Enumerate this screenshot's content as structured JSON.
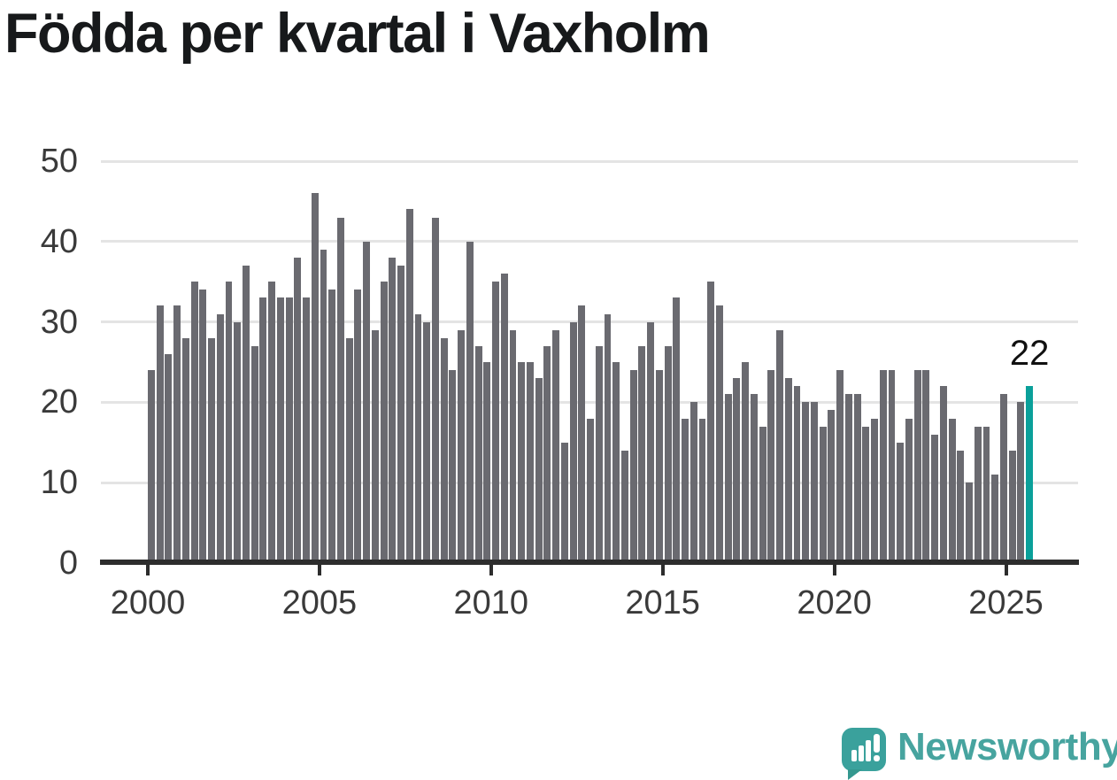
{
  "title": "Födda per kvartal i Vaxholm",
  "branding": {
    "name": "Newsworthy",
    "icon": "newsworthy-speech-bubble-chart-icon"
  },
  "colors": {
    "bar": "#6a6a70",
    "highlight": "#0aa09a",
    "grid": "#e4e4e4",
    "axis": "#2d2d2d",
    "title": "#17191b",
    "tick_label": "#3a3a3a",
    "annotation": "#111111",
    "logo": "#3aa19c",
    "logo_text": "#47a49f",
    "background": "#ffffff"
  },
  "chart_data": {
    "type": "bar",
    "title": "Födda per kvartal i Vaxholm",
    "frequency": "quarterly",
    "x_start": "2000-Q1",
    "x_end": "2025-Q3",
    "values": [
      24,
      32,
      26,
      32,
      28,
      35,
      34,
      28,
      31,
      35,
      30,
      37,
      27,
      33,
      35,
      33,
      33,
      38,
      33,
      46,
      39,
      34,
      43,
      28,
      34,
      40,
      29,
      35,
      38,
      37,
      44,
      31,
      30,
      43,
      28,
      24,
      29,
      40,
      27,
      25,
      35,
      36,
      29,
      25,
      25,
      23,
      27,
      29,
      15,
      30,
      32,
      18,
      27,
      31,
      25,
      14,
      24,
      27,
      30,
      24,
      27,
      33,
      18,
      20,
      18,
      35,
      32,
      21,
      23,
      25,
      21,
      17,
      24,
      29,
      23,
      22,
      20,
      20,
      17,
      19,
      24,
      21,
      21,
      17,
      18,
      24,
      24,
      15,
      18,
      24,
      24,
      16,
      22,
      18,
      14,
      10,
      17,
      17,
      11,
      21,
      14,
      20,
      22
    ],
    "x_tick_labels": [
      "2000",
      "2005",
      "2010",
      "2015",
      "2020",
      "2025"
    ],
    "y_ticks": [
      0,
      10,
      20,
      30,
      40,
      50
    ],
    "ylim": [
      0,
      50
    ],
    "grid": true,
    "legend": false,
    "bar_color": "#6a6a70",
    "highlight": {
      "index": 102,
      "value": 22,
      "label": "22",
      "color": "#0aa09a"
    }
  }
}
